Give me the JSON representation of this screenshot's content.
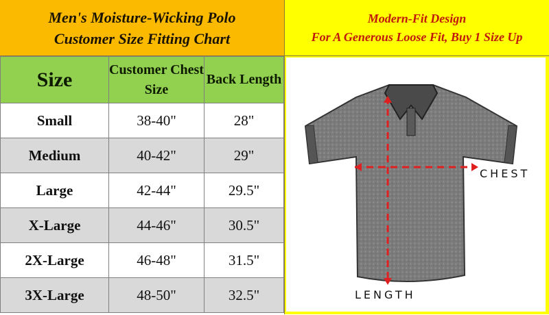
{
  "title": {
    "line1": "Men's Moisture-Wicking Polo",
    "line2": "Customer Size Fitting Chart"
  },
  "note": {
    "line1": "Modern-Fit Design",
    "line2": "For A Generous Loose Fit, Buy 1 Size Up"
  },
  "table": {
    "headers": [
      "Size",
      "Customer Chest Size",
      "Back Length"
    ],
    "rows": [
      [
        "Small",
        "38-40\"",
        "28\""
      ],
      [
        "Medium",
        "40-42\"",
        "29\""
      ],
      [
        "Large",
        "42-44\"",
        "29.5\""
      ],
      [
        "X-Large",
        "44-46\"",
        "30.5\""
      ],
      [
        "2X-Large",
        "46-48\"",
        "31.5\""
      ],
      [
        "3X-Large",
        "48-50\"",
        "32.5\""
      ]
    ]
  },
  "diagram": {
    "chest_label": "CHEST",
    "length_label": "LENGTH"
  },
  "colors": {
    "title_bg": "#FBBA00",
    "header_bg": "#92D050",
    "note_bg": "#FFFF00",
    "note_text": "#C0180A",
    "alt_row": "#D9D9D9",
    "measure_line": "#E02020"
  }
}
